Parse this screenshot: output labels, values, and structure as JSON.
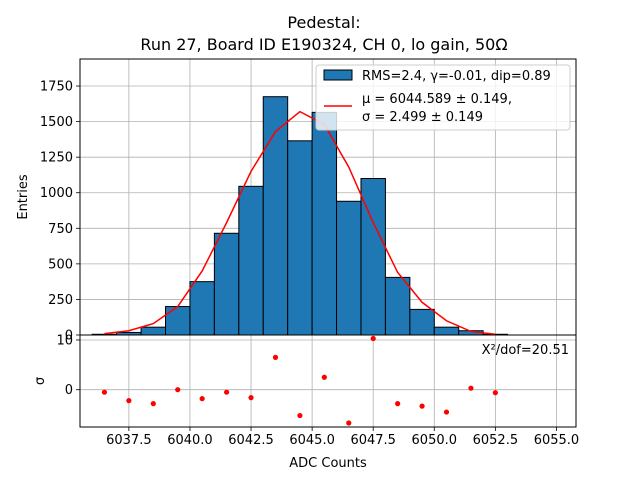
{
  "chart_data": {
    "type": "bar",
    "title_lines": [
      "Pedestal:",
      "Run 27, Board ID E190324, CH 0, lo gain, 50Ω"
    ],
    "xlabel": "ADC Counts",
    "ylabel_top": "Entries",
    "ylabel_bottom": "σ",
    "xlim": [
      6035.5,
      6055.8
    ],
    "ylim_top": [
      0,
      1940
    ],
    "ylim_bottom": [
      -7.5,
      11
    ],
    "xticks": [
      6037.5,
      6040.0,
      6042.5,
      6045.0,
      6047.5,
      6050.0,
      6052.5,
      6055.0
    ],
    "xtick_labels": [
      "6037.5",
      "6040.0",
      "6042.5",
      "6045.0",
      "6047.5",
      "6050.0",
      "6052.5",
      "6055.0"
    ],
    "yticks_top": [
      0,
      250,
      500,
      750,
      1000,
      1250,
      1500,
      1750
    ],
    "ytick_labels_top": [
      "0",
      "250",
      "500",
      "750",
      "1000",
      "1250",
      "1500",
      "1750"
    ],
    "yticks_bottom": [
      0,
      10
    ],
    "ytick_labels_bottom": [
      "0",
      "10"
    ],
    "grid": true,
    "bins": {
      "edges": [
        6036,
        6037,
        6038,
        6039,
        6040,
        6041,
        6042,
        6043,
        6044,
        6045,
        6046,
        6047,
        6048,
        6049,
        6050,
        6051,
        6052,
        6053
      ],
      "counts": [
        5,
        18,
        55,
        200,
        375,
        715,
        1045,
        1675,
        1365,
        1565,
        940,
        1100,
        405,
        180,
        55,
        30,
        5
      ],
      "color": "#1f77b4",
      "edgecolor": "#000000"
    },
    "fit": {
      "x": [
        6036.5,
        6037.5,
        6038.5,
        6039.5,
        6040.5,
        6041.5,
        6042.5,
        6043.5,
        6044.5,
        6045.5,
        6046.5,
        6047.5,
        6048.5,
        6049.5,
        6050.5,
        6051.5,
        6052.5
      ],
      "y": [
        10,
        30,
        80,
        200,
        450,
        790,
        1150,
        1430,
        1570,
        1480,
        1180,
        790,
        440,
        230,
        100,
        25,
        5
      ],
      "color": "#ff0000"
    },
    "residuals": {
      "x": [
        6036.5,
        6037.5,
        6038.5,
        6039.5,
        6040.5,
        6041.5,
        6042.5,
        6043.5,
        6044.5,
        6045.5,
        6046.5,
        6047.5,
        6048.5,
        6049.5,
        6050.5,
        6051.5,
        6052.5
      ],
      "y": [
        -0.5,
        -2.2,
        -2.8,
        0,
        -1.8,
        -0.5,
        -1.6,
        6.5,
        -5.2,
        2.5,
        -6.7,
        10.3,
        -2.8,
        -3.3,
        -4.5,
        0.3,
        -0.6
      ],
      "color": "#ff0000"
    },
    "legend": {
      "position": "top-right",
      "entries": [
        {
          "label": "RMS=2.4, γ=-0.01, dip=0.89",
          "type": "patch"
        },
        {
          "label_line1": "μ = 6044.589 ± 0.149,",
          "label_line2": "σ = 2.499 ± 0.149",
          "type": "line"
        }
      ]
    },
    "annotation": "X²/dof=20.51"
  }
}
